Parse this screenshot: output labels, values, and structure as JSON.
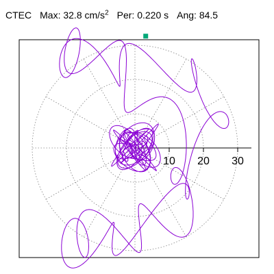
{
  "header": {
    "station": "CTEC",
    "max_label": "Max:",
    "max_value": "32.8",
    "max_unit": "cm/s",
    "max_unit_exp": "2",
    "per_label": "Per:",
    "per_value": "0.220 s",
    "ang_label": "Ang:",
    "ang_value": "84.5"
  },
  "chart_data": {
    "type": "polar-orbit",
    "radial_ticks": [
      10,
      20,
      30
    ],
    "radial_tick_labels": [
      "10",
      "20",
      "30"
    ],
    "radial_range": [
      0,
      35
    ],
    "rings": [
      10,
      20,
      30
    ],
    "spokes_deg": [
      0,
      30,
      60,
      90,
      120,
      150,
      180,
      210,
      240,
      270,
      300,
      330
    ],
    "grid": "dotted",
    "trace_color": "#8a00d4",
    "peak_marker_color": "#00a878",
    "peak": {
      "amplitude": 32.8,
      "angle_deg": 84.5
    },
    "orbit_components": [
      {
        "ax": 4.5,
        "ay": 30.5,
        "fx": 1.0,
        "fy": 1.0,
        "px": 0.0,
        "py": 1.5708
      },
      {
        "ax": 19.0,
        "ay": 5.0,
        "fx": 2.0,
        "fy": 3.0,
        "px": 0.4,
        "py": 1.1
      },
      {
        "ax": 4.0,
        "ay": 6.5,
        "fx": 11.0,
        "fy": 13.0,
        "px": 1.7,
        "py": 0.3
      }
    ]
  }
}
